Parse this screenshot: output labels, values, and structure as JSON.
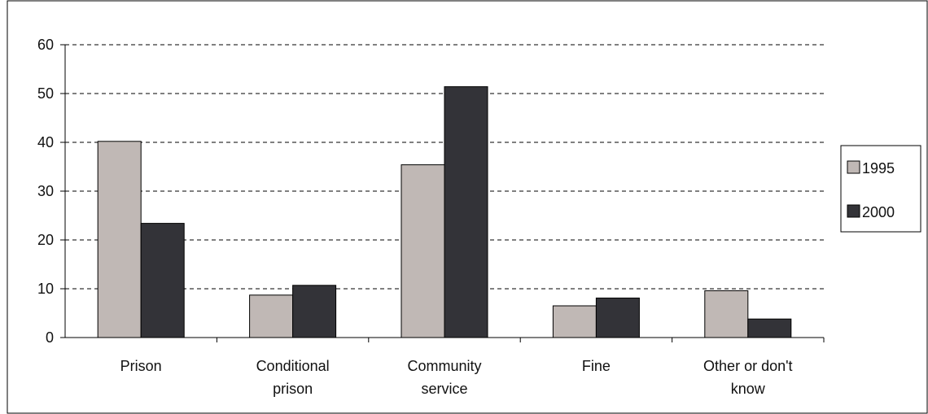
{
  "chart_data": {
    "type": "bar",
    "title": "",
    "xlabel": "",
    "ylabel": "",
    "categories": [
      [
        "Prison"
      ],
      [
        "Conditional",
        "prison"
      ],
      [
        "Community",
        "service"
      ],
      [
        "Fine"
      ],
      [
        "Other or don't",
        "know"
      ]
    ],
    "series": [
      {
        "name": "1995",
        "color": "#c0b8b5",
        "values": [
          40.2,
          8.7,
          35.4,
          6.5,
          9.6
        ]
      },
      {
        "name": "2000",
        "color": "#333338",
        "values": [
          23.4,
          10.7,
          51.4,
          8.1,
          3.8
        ]
      }
    ],
    "yticks": [
      "0",
      "10",
      "20",
      "30",
      "40",
      "50",
      "60"
    ],
    "ylim": [
      0,
      60
    ],
    "grid": "dashed horizontal",
    "legend_position": "right"
  }
}
